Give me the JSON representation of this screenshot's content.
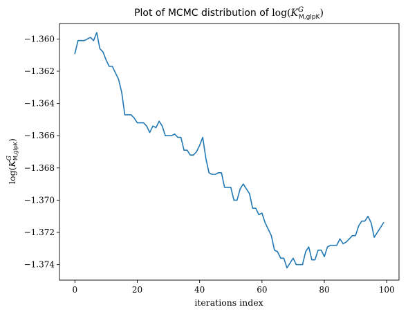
{
  "chart_data": {
    "type": "line",
    "title": {
      "prefix": "Plot of MCMC distribution of ",
      "math": "log(",
      "symbol": "K",
      "superscript": "G",
      "subscript": "M,glpK",
      "suffix": ")"
    },
    "xlabel": "iterations index",
    "ylabel": {
      "math": "log(",
      "symbol": "K",
      "superscript": "G",
      "subscript": "M,glpK",
      "suffix": ")"
    },
    "xlim": [
      -4.95,
      103.95
    ],
    "ylim": [
      -1.37496,
      -1.35904
    ],
    "x_ticks": [
      0,
      20,
      40,
      60,
      80,
      100
    ],
    "x_tick_labels": [
      "0",
      "20",
      "40",
      "60",
      "80",
      "100"
    ],
    "y_ticks": [
      -1.36,
      -1.362,
      -1.364,
      -1.366,
      -1.368,
      -1.37,
      -1.372,
      -1.374
    ],
    "y_tick_labels": [
      "−1.360",
      "−1.362",
      "−1.364",
      "−1.366",
      "−1.368",
      "−1.370",
      "−1.372",
      "−1.374"
    ],
    "grid": false,
    "line_color": "#1f77b4",
    "series": [
      {
        "x": [
          0,
          1,
          2,
          3,
          4,
          5,
          6,
          7,
          8,
          9,
          10,
          11,
          12,
          13,
          14,
          15,
          16,
          17,
          18,
          19,
          20,
          21,
          22,
          23,
          24,
          25,
          26,
          27,
          28,
          29,
          30,
          31,
          32,
          33,
          34,
          35,
          36,
          37,
          38,
          39,
          40,
          41,
          42,
          43,
          44,
          45,
          46,
          47,
          48,
          49,
          50,
          51,
          52,
          53,
          54,
          55,
          56,
          57,
          58,
          59,
          60,
          61,
          62,
          63,
          64,
          65,
          66,
          67,
          68,
          69,
          70,
          71,
          72,
          73,
          74,
          75,
          76,
          77,
          78,
          79,
          80,
          81,
          82,
          83,
          84,
          85,
          86,
          87,
          88,
          89,
          90,
          91,
          92,
          93,
          94,
          95,
          96,
          97,
          98,
          99
        ],
        "values": [
          -1.3609,
          -1.3601,
          -1.3601,
          -1.3601,
          -1.36,
          -1.3599,
          -1.3601,
          -1.3596,
          -1.3606,
          -1.3608,
          -1.3613,
          -1.3617,
          -1.3617,
          -1.3621,
          -1.3625,
          -1.3633,
          -1.3647,
          -1.3647,
          -1.3647,
          -1.3649,
          -1.3652,
          -1.3652,
          -1.3652,
          -1.3654,
          -1.3658,
          -1.3654,
          -1.3655,
          -1.3651,
          -1.3654,
          -1.366,
          -1.366,
          -1.366,
          -1.3659,
          -1.3661,
          -1.3661,
          -1.3669,
          -1.3669,
          -1.3672,
          -1.3672,
          -1.367,
          -1.3666,
          -1.3661,
          -1.3674,
          -1.3683,
          -1.3684,
          -1.3684,
          -1.3683,
          -1.3683,
          -1.3692,
          -1.3692,
          -1.3692,
          -1.37,
          -1.37,
          -1.3693,
          -1.369,
          -1.3693,
          -1.3696,
          -1.3705,
          -1.3705,
          -1.3709,
          -1.3708,
          -1.3714,
          -1.3718,
          -1.3722,
          -1.3731,
          -1.3732,
          -1.3736,
          -1.3736,
          -1.3742,
          -1.3739,
          -1.3736,
          -1.374,
          -1.374,
          -1.374,
          -1.3732,
          -1.3729,
          -1.3737,
          -1.3737,
          -1.3731,
          -1.3731,
          -1.3735,
          -1.3729,
          -1.3728,
          -1.3728,
          -1.3728,
          -1.3724,
          -1.3727,
          -1.3726,
          -1.3724,
          -1.3722,
          -1.3722,
          -1.3716,
          -1.3713,
          -1.3713,
          -1.371,
          -1.3714,
          -1.3723,
          -1.372,
          -1.3717,
          -1.3714
        ]
      }
    ]
  }
}
